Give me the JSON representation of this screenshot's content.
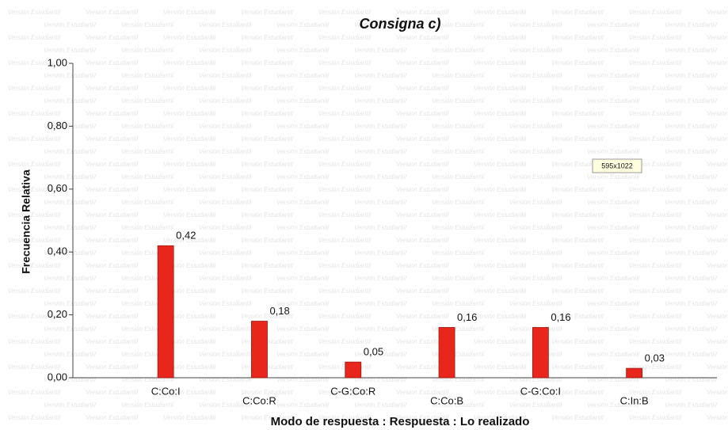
{
  "chart_data": {
    "type": "bar",
    "title": "Consigna c)",
    "x_label": "Modo de respuesta : Respuesta : Lo realizado",
    "y_label": "Frecuencia Relativa",
    "categories": [
      "C:Co:I",
      "C:Co:R",
      "C-G:Co:R",
      "C:Co:B",
      "C-G:Co:I",
      "C:In:B"
    ],
    "values": [
      0.42,
      0.18,
      0.05,
      0.16,
      0.16,
      0.03
    ],
    "value_labels": [
      "0,42",
      "0,18",
      "0,05",
      "0,16",
      "0,16",
      "0,03"
    ],
    "color": "#e8261c",
    "ylim": [
      0,
      1
    ],
    "yticks": [
      {
        "value": 0,
        "label": "0,00"
      },
      {
        "value": 0.2,
        "label": "0,20"
      },
      {
        "value": 0.4,
        "label": "0,40"
      },
      {
        "value": 0.6,
        "label": "0,60"
      },
      {
        "value": 0.8,
        "label": "0,80"
      },
      {
        "value": 1,
        "label": "1,00"
      }
    ],
    "grid": false,
    "annotation": "595x1022",
    "watermark": "Versión Estudiantil"
  }
}
